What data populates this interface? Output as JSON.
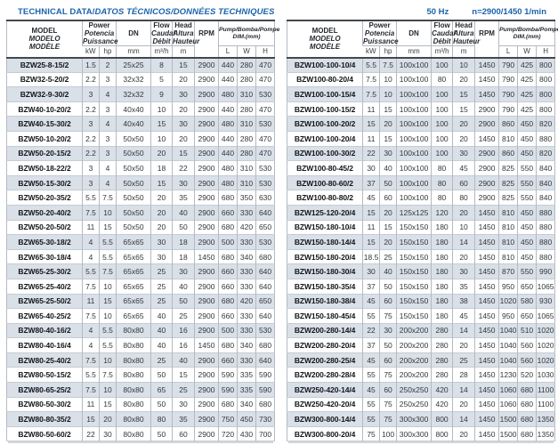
{
  "title": {
    "part1": "TECHNICAL DATA/",
    "part2": "DATOS TÉCNICOS/DONNÉES TECHNIQUES"
  },
  "conditions": {
    "frequency": "50 Hz",
    "speed": "n=2900/1450 1/min"
  },
  "colors": {
    "accent_blue": "#1b64ad",
    "row_shade": "#d9e0e8"
  },
  "table_header": {
    "model": {
      "en": "MODEL",
      "es": "MODELO",
      "fr": "MODÈLE"
    },
    "power": {
      "en": "Power",
      "es": "Potencia",
      "fr": "Puissance"
    },
    "dn": "DN",
    "flow": {
      "en": "Flow",
      "es": "Caudal",
      "fr": "Débit"
    },
    "head": {
      "en": "Head",
      "es": "Altura",
      "fr": "Hauteur"
    },
    "rpm": "RPM",
    "dim": {
      "line1": "Pump/Bomba/Pompe",
      "line2": "DIM.(mm)"
    },
    "units": {
      "kw": "kW",
      "hp": "hp",
      "dn": "mm",
      "flow": "m³/h",
      "head": "m",
      "l": "L",
      "w": "W",
      "h": "H"
    }
  },
  "left_table": {
    "rows": [
      [
        "BZW25-8-15/2",
        "1.5",
        "2",
        "25x25",
        "8",
        "15",
        "2900",
        "440",
        "280",
        "470"
      ],
      [
        "BZW32-5-20/2",
        "2.2",
        "3",
        "32x32",
        "5",
        "20",
        "2900",
        "440",
        "280",
        "470"
      ],
      [
        "BZW32-9-30/2",
        "3",
        "4",
        "32x32",
        "9",
        "30",
        "2900",
        "480",
        "310",
        "530"
      ],
      [
        "BZW40-10-20/2",
        "2.2",
        "3",
        "40x40",
        "10",
        "20",
        "2900",
        "440",
        "280",
        "470"
      ],
      [
        "BZW40-15-30/2",
        "3",
        "4",
        "40x40",
        "15",
        "30",
        "2900",
        "480",
        "310",
        "530"
      ],
      [
        "BZW50-10-20/2",
        "2.2",
        "3",
        "50x50",
        "10",
        "20",
        "2900",
        "440",
        "280",
        "470"
      ],
      [
        "BZW50-20-15/2",
        "2.2",
        "3",
        "50x50",
        "20",
        "15",
        "2900",
        "440",
        "280",
        "470"
      ],
      [
        "BZW50-18-22/2",
        "3",
        "4",
        "50x50",
        "18",
        "22",
        "2900",
        "480",
        "310",
        "530"
      ],
      [
        "BZW50-15-30/2",
        "3",
        "4",
        "50x50",
        "15",
        "30",
        "2900",
        "480",
        "310",
        "530"
      ],
      [
        "BZW50-20-35/2",
        "5.5",
        "7.5",
        "50x50",
        "20",
        "35",
        "2900",
        "680",
        "350",
        "630"
      ],
      [
        "BZW50-20-40/2",
        "7.5",
        "10",
        "50x50",
        "20",
        "40",
        "2900",
        "660",
        "330",
        "640"
      ],
      [
        "BZW50-20-50/2",
        "11",
        "15",
        "50x50",
        "20",
        "50",
        "2900",
        "680",
        "420",
        "650"
      ],
      [
        "BZW65-30-18/2",
        "4",
        "5.5",
        "65x65",
        "30",
        "18",
        "2900",
        "500",
        "330",
        "530"
      ],
      [
        "BZW65-30-18/4",
        "4",
        "5.5",
        "65x65",
        "30",
        "18",
        "1450",
        "680",
        "340",
        "680"
      ],
      [
        "BZW65-25-30/2",
        "5.5",
        "7.5",
        "65x65",
        "25",
        "30",
        "2900",
        "660",
        "330",
        "640"
      ],
      [
        "BZW65-25-40/2",
        "7.5",
        "10",
        "65x65",
        "25",
        "40",
        "2900",
        "660",
        "330",
        "640"
      ],
      [
        "BZW65-25-50/2",
        "11",
        "15",
        "65x65",
        "25",
        "50",
        "2900",
        "680",
        "420",
        "650"
      ],
      [
        "BZW65-40-25/2",
        "7.5",
        "10",
        "65x65",
        "40",
        "25",
        "2900",
        "660",
        "330",
        "640"
      ],
      [
        "BZW80-40-16/2",
        "4",
        "5.5",
        "80x80",
        "40",
        "16",
        "2900",
        "500",
        "330",
        "530"
      ],
      [
        "BZW80-40-16/4",
        "4",
        "5.5",
        "80x80",
        "40",
        "16",
        "1450",
        "680",
        "340",
        "680"
      ],
      [
        "BZW80-25-40/2",
        "7.5",
        "10",
        "80x80",
        "25",
        "40",
        "2900",
        "660",
        "330",
        "640"
      ],
      [
        "BZW80-50-15/2",
        "5.5",
        "7.5",
        "80x80",
        "50",
        "15",
        "2900",
        "590",
        "335",
        "590"
      ],
      [
        "BZW80-65-25/2",
        "7.5",
        "10",
        "80x80",
        "65",
        "25",
        "2900",
        "590",
        "335",
        "590"
      ],
      [
        "BZW80-50-30/2",
        "11",
        "15",
        "80x80",
        "50",
        "30",
        "2900",
        "680",
        "340",
        "680"
      ],
      [
        "BZW80-80-35/2",
        "15",
        "20",
        "80x80",
        "80",
        "35",
        "2900",
        "750",
        "450",
        "730"
      ],
      [
        "BZW80-50-60/2",
        "22",
        "30",
        "80x80",
        "50",
        "60",
        "2900",
        "720",
        "430",
        "700"
      ]
    ]
  },
  "right_table": {
    "rows": [
      [
        "BZW100-100-10/4",
        "5.5",
        "7.5",
        "100x100",
        "100",
        "10",
        "1450",
        "790",
        "425",
        "800"
      ],
      [
        "BZW100-80-20/4",
        "7.5",
        "10",
        "100x100",
        "80",
        "20",
        "1450",
        "790",
        "425",
        "800"
      ],
      [
        "BZW100-100-15/4",
        "7.5",
        "10",
        "100x100",
        "100",
        "15",
        "1450",
        "790",
        "425",
        "800"
      ],
      [
        "BZW100-100-15/2",
        "11",
        "15",
        "100x100",
        "100",
        "15",
        "2900",
        "790",
        "425",
        "800"
      ],
      [
        "BZW100-100-20/2",
        "15",
        "20",
        "100x100",
        "100",
        "20",
        "2900",
        "860",
        "450",
        "820"
      ],
      [
        "BZW100-100-20/4",
        "11",
        "15",
        "100x100",
        "100",
        "20",
        "1450",
        "810",
        "450",
        "880"
      ],
      [
        "BZW100-100-30/2",
        "22",
        "30",
        "100x100",
        "100",
        "30",
        "2900",
        "860",
        "450",
        "820"
      ],
      [
        "BZW100-80-45/2",
        "30",
        "40",
        "100x100",
        "80",
        "45",
        "2900",
        "825",
        "550",
        "840"
      ],
      [
        "BZW100-80-60/2",
        "37",
        "50",
        "100x100",
        "80",
        "60",
        "2900",
        "825",
        "550",
        "840"
      ],
      [
        "BZW100-80-80/2",
        "45",
        "60",
        "100x100",
        "80",
        "80",
        "2900",
        "825",
        "550",
        "840"
      ],
      [
        "BZW125-120-20/4",
        "15",
        "20",
        "125x125",
        "120",
        "20",
        "1450",
        "810",
        "450",
        "880"
      ],
      [
        "BZW150-180-10/4",
        "11",
        "15",
        "150x150",
        "180",
        "10",
        "1450",
        "810",
        "450",
        "880"
      ],
      [
        "BZW150-180-14/4",
        "15",
        "20",
        "150x150",
        "180",
        "14",
        "1450",
        "810",
        "450",
        "880"
      ],
      [
        "BZW150-180-20/4",
        "18.5",
        "25",
        "150x150",
        "180",
        "20",
        "1450",
        "810",
        "450",
        "880"
      ],
      [
        "BZW150-180-30/4",
        "30",
        "40",
        "150x150",
        "180",
        "30",
        "1450",
        "870",
        "550",
        "990"
      ],
      [
        "BZW150-180-35/4",
        "37",
        "50",
        "150x150",
        "180",
        "35",
        "1450",
        "950",
        "650",
        "1065"
      ],
      [
        "BZW150-180-38/4",
        "45",
        "60",
        "150x150",
        "180",
        "38",
        "1450",
        "1020",
        "580",
        "930"
      ],
      [
        "BZW150-180-45/4",
        "55",
        "75",
        "150x150",
        "180",
        "45",
        "1450",
        "950",
        "650",
        "1065"
      ],
      [
        "BZW200-280-14/4",
        "22",
        "30",
        "200x200",
        "280",
        "14",
        "1450",
        "1040",
        "510",
        "1020"
      ],
      [
        "BZW200-280-20/4",
        "37",
        "50",
        "200x200",
        "280",
        "20",
        "1450",
        "1040",
        "560",
        "1020"
      ],
      [
        "BZW200-280-25/4",
        "45",
        "60",
        "200x200",
        "280",
        "25",
        "1450",
        "1040",
        "560",
        "1020"
      ],
      [
        "BZW200-280-28/4",
        "55",
        "75",
        "200x200",
        "280",
        "28",
        "1450",
        "1230",
        "520",
        "1030"
      ],
      [
        "BZW250-420-14/4",
        "45",
        "60",
        "250x250",
        "420",
        "14",
        "1450",
        "1060",
        "680",
        "1100"
      ],
      [
        "BZW250-420-20/4",
        "55",
        "75",
        "250x250",
        "420",
        "20",
        "1450",
        "1060",
        "680",
        "1100"
      ],
      [
        "BZW300-800-14/4",
        "55",
        "75",
        "300x300",
        "800",
        "14",
        "1450",
        "1500",
        "680",
        "1350"
      ],
      [
        "BZW300-800-20/4",
        "75",
        "100",
        "300x300",
        "800",
        "20",
        "1450",
        "1500",
        "680",
        "1350"
      ]
    ]
  }
}
